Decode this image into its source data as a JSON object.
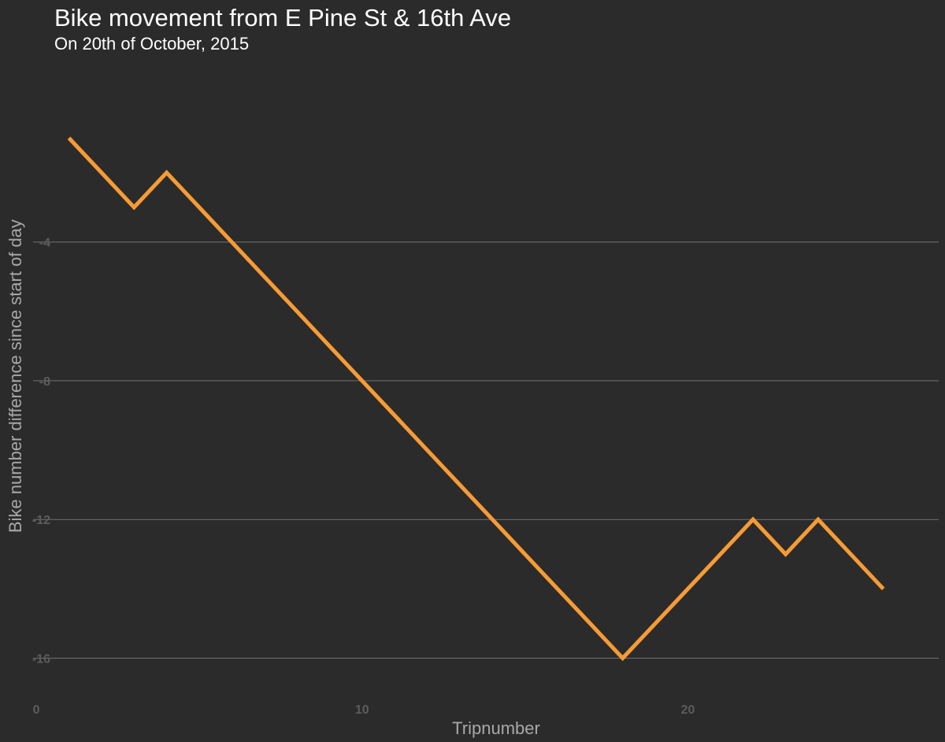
{
  "chart_data": {
    "type": "line",
    "title": "Bike movement from E Pine St & 16th Ave",
    "subtitle": "On 20th of October, 2015",
    "xlabel": "Tripnumber",
    "ylabel": "Bike number difference since start of day",
    "x_ticks": [
      0,
      10,
      20
    ],
    "y_ticks": [
      -4,
      -8,
      -12,
      -16
    ],
    "xlim": [
      -0.1,
      27.7
    ],
    "ylim": [
      -17.1,
      1.05
    ],
    "grid": "horizontal",
    "legend": "none",
    "colors": {
      "background": "#2b2b2b",
      "line": "#f69b35",
      "grid": "#727272"
    },
    "series": [
      {
        "x": [
          1,
          2,
          3,
          4,
          5,
          6,
          7,
          8,
          9,
          10,
          11,
          12,
          13,
          14,
          15,
          16,
          17,
          18,
          19,
          20,
          21,
          22,
          23,
          24,
          25,
          26
        ],
        "values": [
          -1,
          -2,
          -3,
          -2,
          -3,
          -4,
          -5,
          -6,
          -7,
          -8,
          -9,
          -10,
          -11,
          -12,
          -13,
          -14,
          -15,
          -16,
          -15,
          -14,
          -13,
          -12,
          -13,
          -12,
          -13,
          -14
        ]
      }
    ]
  }
}
